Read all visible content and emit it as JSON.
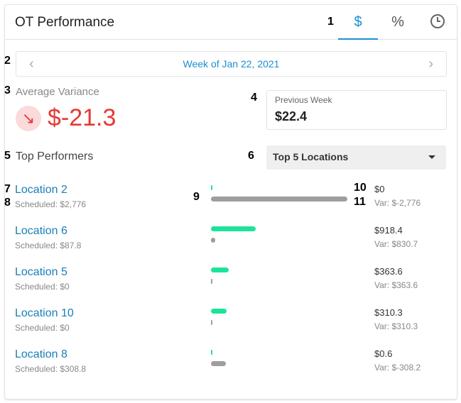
{
  "header": {
    "title": "OT Performance",
    "tabs": [
      {
        "label": "$",
        "icon": "dollar-icon",
        "active": true
      },
      {
        "label": "%",
        "icon": "percent-icon",
        "active": false
      },
      {
        "label": "",
        "icon": "clock-icon",
        "active": false
      }
    ]
  },
  "week": {
    "label": "Week of Jan 22, 2021",
    "prev_icon": "chevron-left-icon",
    "next_icon": "chevron-right-icon"
  },
  "average_variance": {
    "label": "Average Variance",
    "value": "$-21.3",
    "trend_icon": "arrow-down-right-icon"
  },
  "previous_week": {
    "label": "Previous Week",
    "value": "$22.4"
  },
  "top_performers": {
    "label": "Top Performers",
    "select_value": "Top 5 Locations"
  },
  "locations": [
    {
      "name": "Location 2",
      "scheduled": "Scheduled: $2,776",
      "value": "$0",
      "variance": "Var: $-2,776",
      "ot_fraction": 0.0,
      "sched_fraction": 1.0
    },
    {
      "name": "Location 6",
      "scheduled": "Scheduled: $87.8",
      "value": "$918.4",
      "variance": "Var: $830.7",
      "ot_fraction": 0.33,
      "sched_fraction": 0.032
    },
    {
      "name": "Location 5",
      "scheduled": "Scheduled: $0",
      "value": "$363.6",
      "variance": "Var: $363.6",
      "ot_fraction": 0.13,
      "sched_fraction": 0.0
    },
    {
      "name": "Location 10",
      "scheduled": "Scheduled: $0",
      "value": "$310.3",
      "variance": "Var: $310.3",
      "ot_fraction": 0.112,
      "sched_fraction": 0.0
    },
    {
      "name": "Location 8",
      "scheduled": "Scheduled: $308.8",
      "value": "$0.6",
      "variance": "Var: $-308.2",
      "ot_fraction": 0.0,
      "sched_fraction": 0.111
    }
  ],
  "annotations": [
    "1",
    "2",
    "3",
    "4",
    "5",
    "6",
    "7",
    "8",
    "9",
    "10",
    "11"
  ],
  "colors": {
    "accent": "#1a8fd1",
    "negative": "#e53935",
    "ot_bar": "#1de39a",
    "scheduled_bar": "#9e9e9e"
  }
}
